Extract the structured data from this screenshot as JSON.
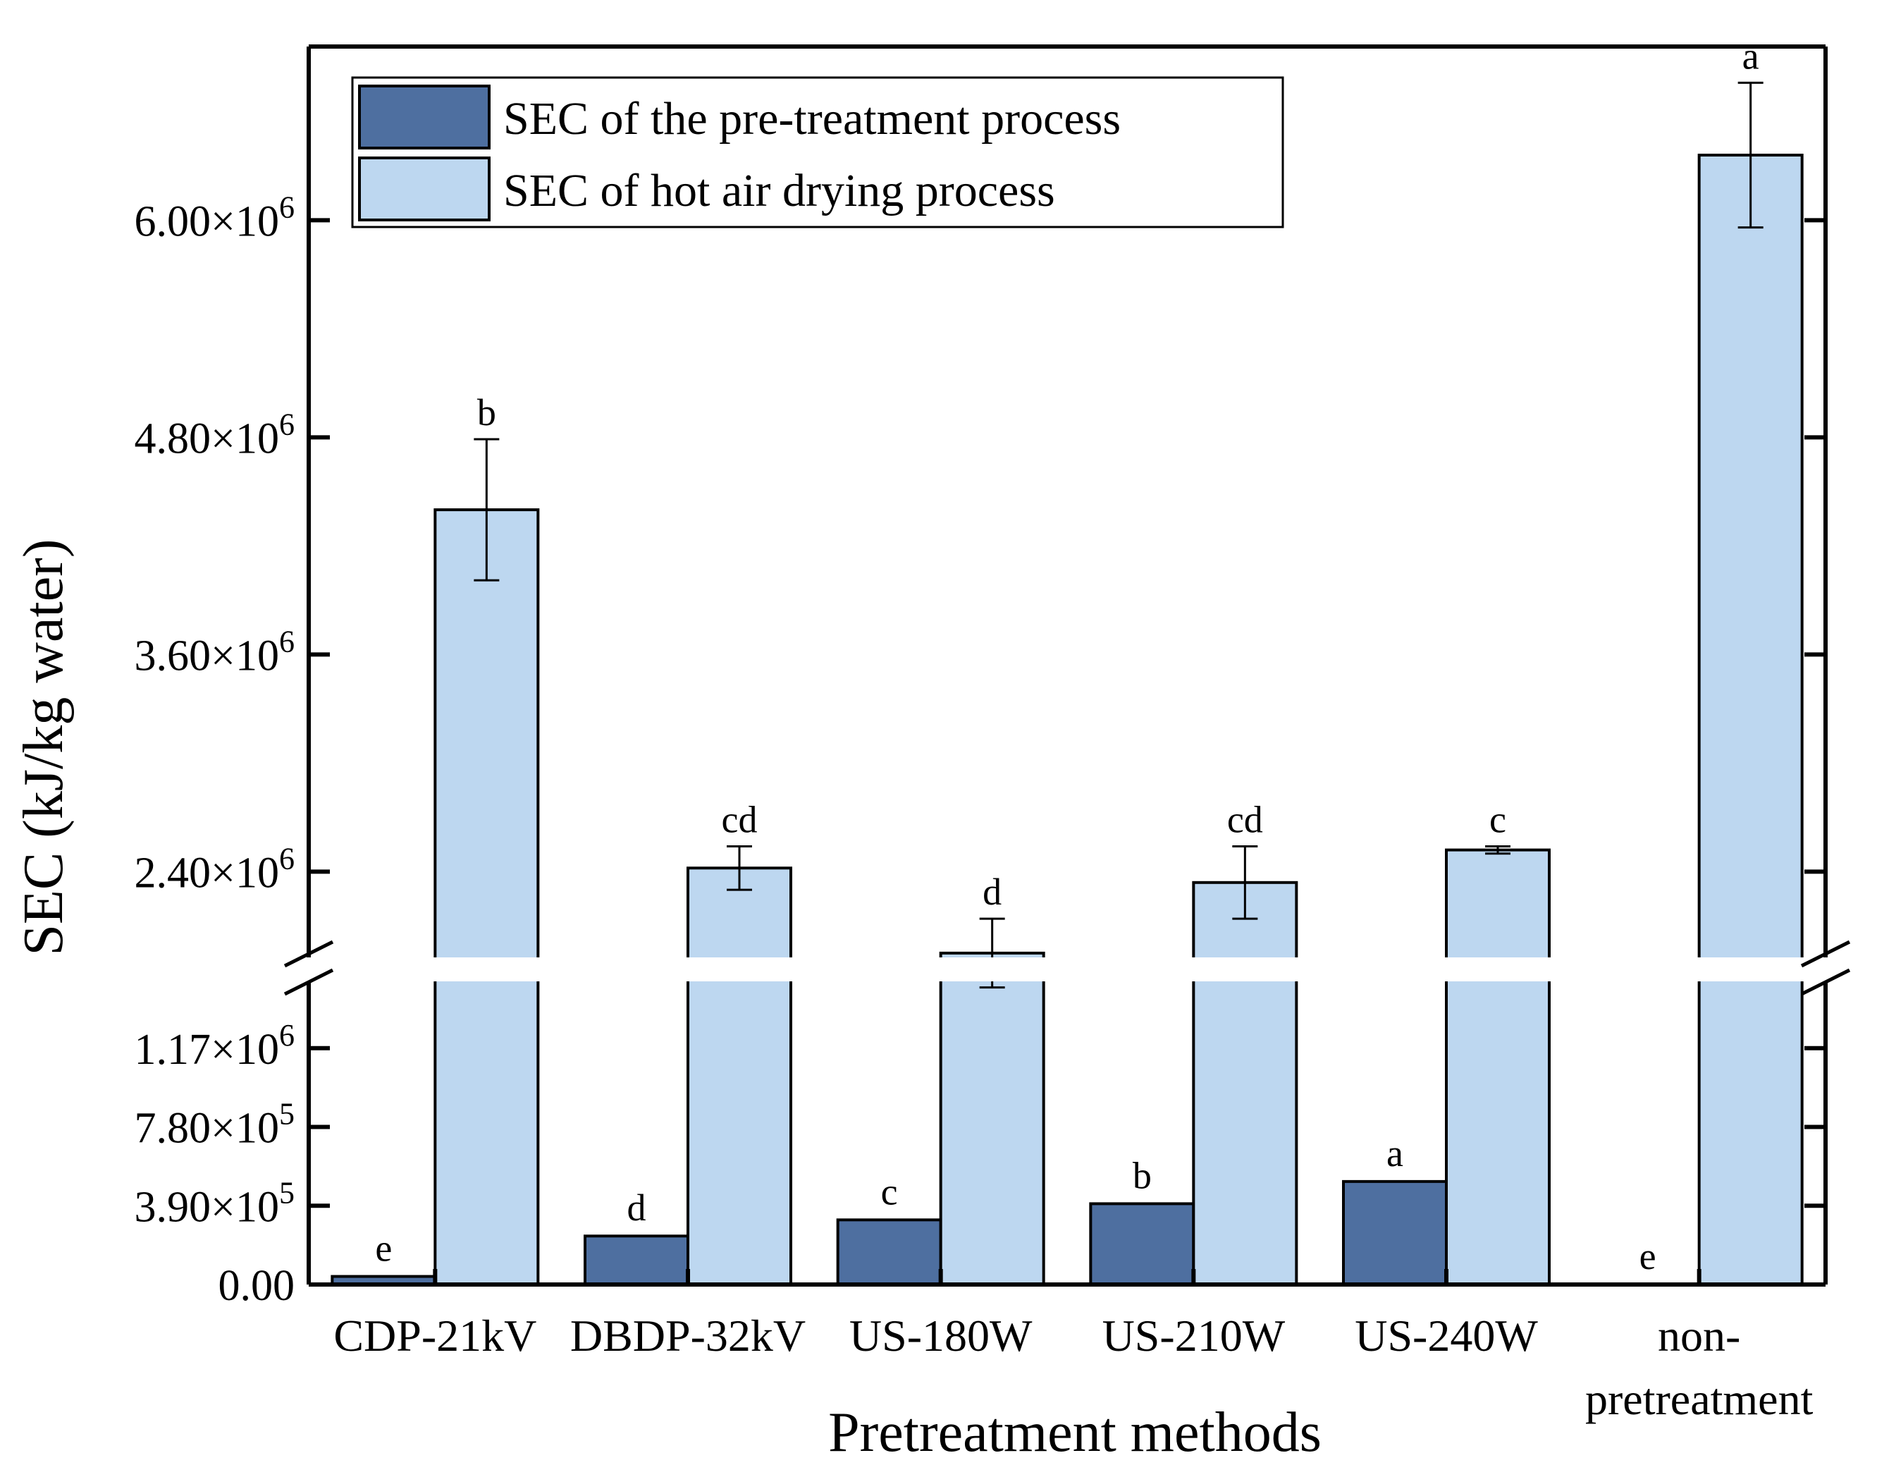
{
  "chart_data": {
    "type": "bar",
    "title": "",
    "xlabel": "Pretreatment methods",
    "ylabel": "SEC (kJ/kg water)",
    "axis_break": true,
    "lower_ylim": [
      0,
      1560000
    ],
    "upper_ylim": [
      1860000,
      6960000
    ],
    "lower_ticks": [
      {
        "value": 0,
        "mantissa": "0.00",
        "exp": ""
      },
      {
        "value": 390000,
        "mantissa": "3.90×10",
        "exp": "5"
      },
      {
        "value": 780000,
        "mantissa": "7.80×10",
        "exp": "5"
      },
      {
        "value": 1170000,
        "mantissa": "1.17×10",
        "exp": "6"
      }
    ],
    "upper_ticks": [
      {
        "value": 2400000,
        "mantissa": "2.40×10",
        "exp": "6"
      },
      {
        "value": 3600000,
        "mantissa": "3.60×10",
        "exp": "6"
      },
      {
        "value": 4800000,
        "mantissa": "4.80×10",
        "exp": "6"
      },
      {
        "value": 6000000,
        "mantissa": "6.00×10",
        "exp": "6"
      }
    ],
    "categories": [
      {
        "line1": "CDP-21kV",
        "line2": ""
      },
      {
        "line1": "DBDP-32kV",
        "line2": ""
      },
      {
        "line1": "US-180W",
        "line2": ""
      },
      {
        "line1": "US-210W",
        "line2": ""
      },
      {
        "line1": "US-240W",
        "line2": ""
      },
      {
        "line1": "non-",
        "line2": "pretreatment"
      }
    ],
    "series": [
      {
        "name": "SEC of the pre-treatment process",
        "color": "#4e6fa0",
        "values": [
          40000,
          240000,
          320000,
          400000,
          510000,
          0
        ],
        "errors": [
          0,
          0,
          0,
          0,
          0,
          0
        ],
        "letters": [
          "e",
          "d",
          "c",
          "b",
          "a",
          "e"
        ]
      },
      {
        "name": "SEC of hot air drying process",
        "color": "#bdd7f0",
        "values": [
          4400000,
          2420000,
          1950000,
          2340000,
          2520000,
          6360000
        ],
        "errors": [
          390000,
          120000,
          190000,
          200000,
          20000,
          400000
        ],
        "letters": [
          "b",
          "cd",
          "d",
          "cd",
          "c",
          "a"
        ]
      }
    ],
    "legend_position": "top-left"
  }
}
